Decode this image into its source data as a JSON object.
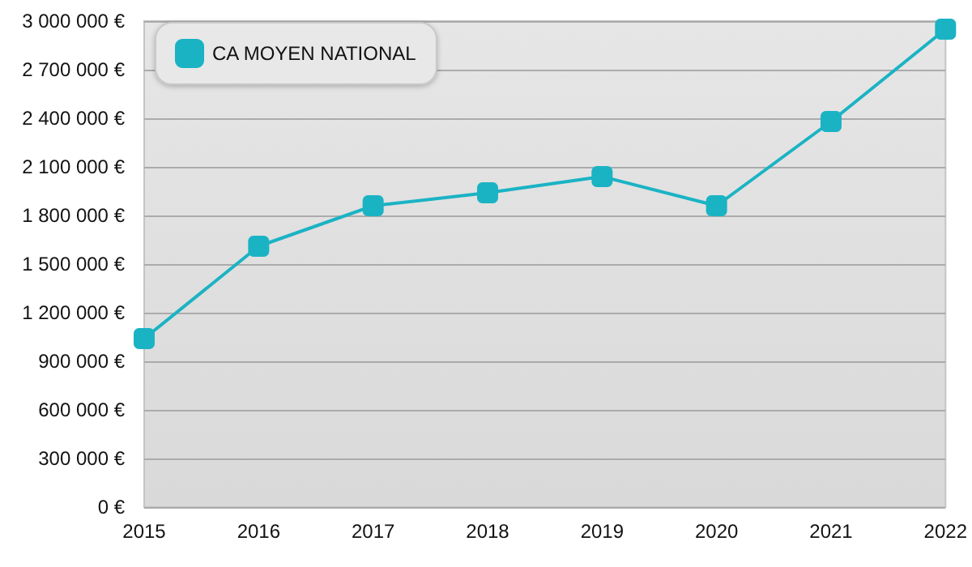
{
  "chart_data": {
    "type": "line",
    "categories": [
      "2015",
      "2016",
      "2017",
      "2018",
      "2019",
      "2020",
      "2021",
      "2022"
    ],
    "series": [
      {
        "name": "CA MOYEN NATIONAL",
        "color": "#1ab3c4",
        "values": [
          1040000,
          1610000,
          1860000,
          1940000,
          2040000,
          1860000,
          2380000,
          2950000
        ]
      }
    ],
    "ylim": [
      0,
      3000000
    ],
    "yticks": [
      {
        "value": 0,
        "label": "0 €"
      },
      {
        "value": 300000,
        "label": "300 000 €"
      },
      {
        "value": 600000,
        "label": "600 000 €"
      },
      {
        "value": 900000,
        "label": "900 000 €"
      },
      {
        "value": 1200000,
        "label": "1 200 000 €"
      },
      {
        "value": 1500000,
        "label": "1 500 000 €"
      },
      {
        "value": 1800000,
        "label": "1 800 000 €"
      },
      {
        "value": 2100000,
        "label": "2 100 000 €"
      },
      {
        "value": 2400000,
        "label": "2 400 000 €"
      },
      {
        "value": 2700000,
        "label": "2 700 000 €"
      },
      {
        "value": 3000000,
        "label": "3 000 000 €"
      }
    ],
    "grid": "y",
    "legend": "top left",
    "marker": "square",
    "line_style": "solid"
  }
}
